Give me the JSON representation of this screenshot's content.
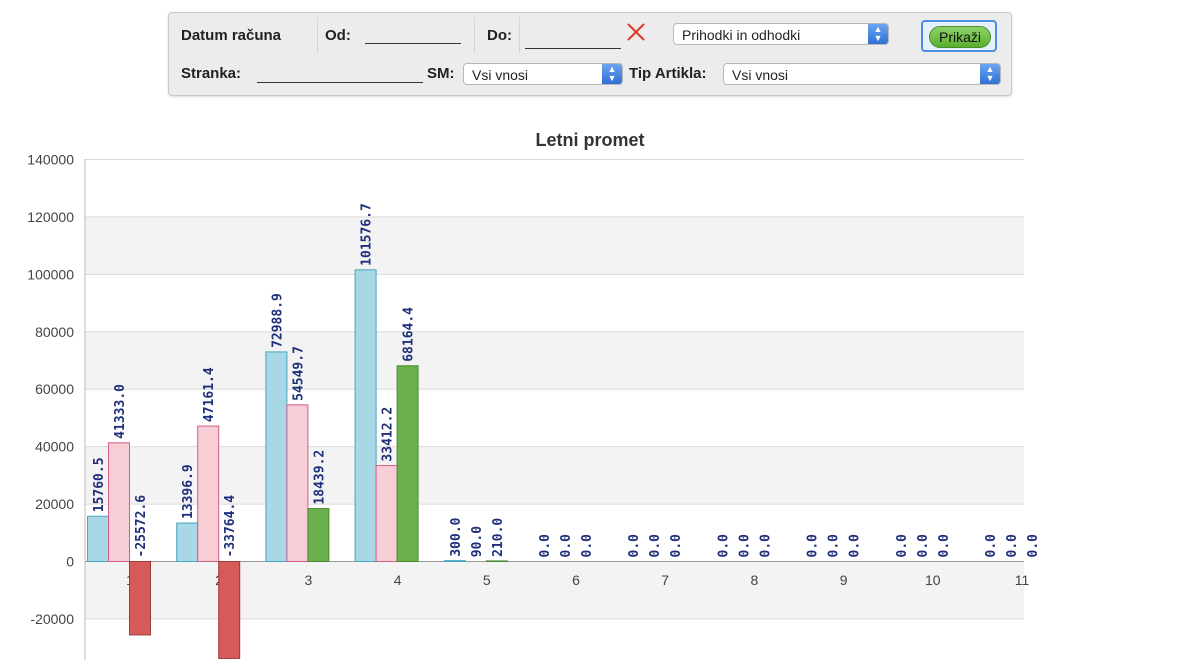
{
  "filters": {
    "invoice_date_label": "Datum računa",
    "from_label": "Od:",
    "to_label": "Do:",
    "report_type": "Prihodki in odhodki",
    "show_label": "Prikaži",
    "client_label": "Stranka:",
    "sm_label": "SM:",
    "sm_value": "Vsi vnosi",
    "item_type_label": "Tip Artikla:",
    "item_type_value": "Vsi vnosi"
  },
  "colors": {
    "income": "#a8d8e6",
    "expense": "#f7cdd6",
    "profit_positive": "#6ab04c",
    "profit_negative": "#d65a5a",
    "label_text": "#1f2f7a",
    "clear_icon": "#e03a2f"
  },
  "icons": {
    "clear": "close-icon",
    "select_arrow": "chevron-updown-icon"
  },
  "chart_data": {
    "type": "bar",
    "title": "Letni promet",
    "categories": [
      "1",
      "2",
      "3",
      "4",
      "5",
      "6",
      "7",
      "8",
      "9",
      "10",
      "11"
    ],
    "series": [
      {
        "values": [
          15760.5,
          13396.9,
          72988.9,
          101576.7,
          300.0,
          0.0,
          0.0,
          0.0,
          0.0,
          0.0,
          0.0
        ]
      },
      {
        "values": [
          41333.0,
          47161.4,
          54549.7,
          33412.2,
          90.0,
          0.0,
          0.0,
          0.0,
          0.0,
          0.0,
          0.0
        ]
      },
      {
        "values": [
          -25572.6,
          -33764.4,
          18439.2,
          68164.4,
          210.0,
          0.0,
          0.0,
          0.0,
          0.0,
          0.0,
          0.0
        ]
      }
    ],
    "data_labels": [
      [
        "15760.5",
        "41333.0",
        "-25572.6"
      ],
      [
        "13396.9",
        "47161.4",
        "-33764.4"
      ],
      [
        "72988.9",
        "54549.7",
        "18439.2"
      ],
      [
        "101576.7",
        "33412.2",
        "68164.4"
      ],
      [
        "300.0",
        "90.0",
        "210.0"
      ],
      [
        "0.0",
        "0.0",
        "0.0"
      ],
      [
        "0.0",
        "0.0",
        "0.0"
      ],
      [
        "0.0",
        "0.0",
        "0.0"
      ],
      [
        "0.0",
        "0.0",
        "0.0"
      ],
      [
        "0.0",
        "0.0",
        "0.0"
      ],
      [
        "0.0",
        "0.0",
        "0.0"
      ]
    ],
    "yticks": [
      "140000",
      "120000",
      "100000",
      "80000",
      "60000",
      "40000",
      "20000",
      "0",
      "-20000"
    ],
    "ylim": [
      -35000,
      140000
    ],
    "grid": true,
    "legend": "none"
  }
}
